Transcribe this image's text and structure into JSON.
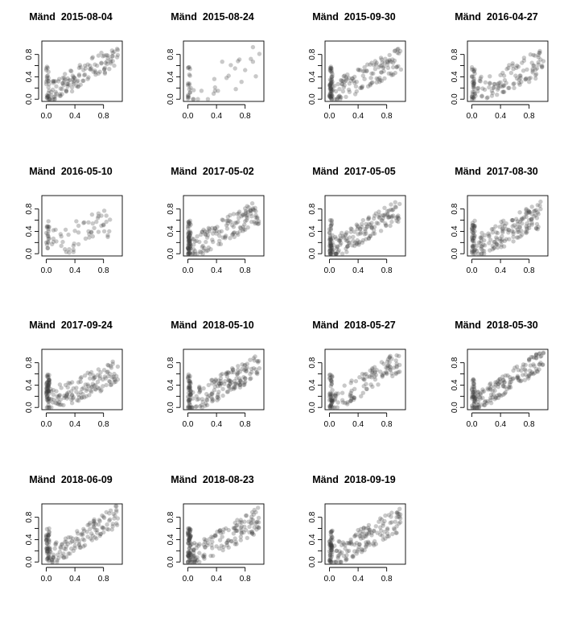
{
  "chart_data": [
    {
      "type": "scatter",
      "title": "Mänd  2015-08-04",
      "seed": 1,
      "n": 150,
      "xlim": [
        0,
        1
      ],
      "ylim": [
        0,
        1
      ],
      "xticks": [
        "0.0",
        "0.4",
        "0.8"
      ],
      "yticks": [
        "0.0",
        "0.4",
        "0.8"
      ],
      "slope": 0.75,
      "spread": 0.22,
      "cluster_zero": 0.2
    },
    {
      "type": "scatter",
      "title": "Mänd  2015-08-24",
      "seed": 2,
      "n": 45,
      "xlim": [
        0,
        1
      ],
      "ylim": [
        0,
        1
      ],
      "xticks": [
        "0.0",
        "0.4",
        "0.8"
      ],
      "yticks": [
        "0.0",
        "0.4",
        "0.8"
      ],
      "slope": 0.6,
      "spread": 0.3,
      "cluster_zero": 0.35
    },
    {
      "type": "scatter",
      "title": "Mänd  2015-09-30",
      "seed": 3,
      "n": 180,
      "xlim": [
        0,
        1
      ],
      "ylim": [
        0,
        1
      ],
      "xticks": [
        "0.0",
        "0.4",
        "0.8"
      ],
      "yticks": [
        "0.0",
        "0.4",
        "0.8"
      ],
      "slope": 0.65,
      "spread": 0.22,
      "cluster_zero": 0.25
    },
    {
      "type": "scatter",
      "title": "Mänd  2016-04-27",
      "seed": 4,
      "n": 140,
      "xlim": [
        0,
        1
      ],
      "ylim": [
        0,
        1
      ],
      "xticks": [
        "0.0",
        "0.4",
        "0.8"
      ],
      "yticks": [
        "0.0",
        "0.4",
        "0.8"
      ],
      "slope": 0.6,
      "spread": 0.25,
      "cluster_zero": 0.25
    },
    {
      "type": "scatter",
      "title": "Mänd  2016-05-10",
      "seed": 5,
      "n": 75,
      "xlim": [
        0,
        1
      ],
      "ylim": [
        0,
        1
      ],
      "xticks": [
        "0.0",
        "0.4",
        "0.8"
      ],
      "yticks": [
        "0.0",
        "0.4",
        "0.8"
      ],
      "slope": 0.55,
      "spread": 0.28,
      "cluster_zero": 0.3
    },
    {
      "type": "scatter",
      "title": "Mänd  2017-05-02",
      "seed": 6,
      "n": 200,
      "xlim": [
        0,
        1
      ],
      "ylim": [
        0,
        1
      ],
      "xticks": [
        "0.0",
        "0.4",
        "0.8"
      ],
      "yticks": [
        "0.0",
        "0.4",
        "0.8"
      ],
      "slope": 0.7,
      "spread": 0.22,
      "cluster_zero": 0.25
    },
    {
      "type": "scatter",
      "title": "Mänd  2017-05-05",
      "seed": 7,
      "n": 190,
      "xlim": [
        0,
        1
      ],
      "ylim": [
        0,
        1
      ],
      "xticks": [
        "0.0",
        "0.4",
        "0.8"
      ],
      "yticks": [
        "0.0",
        "0.4",
        "0.8"
      ],
      "slope": 0.75,
      "spread": 0.2,
      "cluster_zero": 0.2
    },
    {
      "type": "scatter",
      "title": "Mänd  2017-08-30",
      "seed": 8,
      "n": 190,
      "xlim": [
        0,
        1
      ],
      "ylim": [
        0,
        1
      ],
      "xticks": [
        "0.0",
        "0.4",
        "0.8"
      ],
      "yticks": [
        "0.0",
        "0.4",
        "0.8"
      ],
      "slope": 0.65,
      "spread": 0.24,
      "cluster_zero": 0.2
    },
    {
      "type": "scatter",
      "title": "Mänd  2017-09-24",
      "seed": 9,
      "n": 190,
      "xlim": [
        0,
        1
      ],
      "ylim": [
        0,
        1
      ],
      "xticks": [
        "0.0",
        "0.4",
        "0.8"
      ],
      "yticks": [
        "0.0",
        "0.4",
        "0.8"
      ],
      "slope": 0.55,
      "spread": 0.22,
      "cluster_zero": 0.25
    },
    {
      "type": "scatter",
      "title": "Mänd  2018-05-10",
      "seed": 10,
      "n": 200,
      "xlim": [
        0,
        1
      ],
      "ylim": [
        0,
        1
      ],
      "xticks": [
        "0.0",
        "0.4",
        "0.8"
      ],
      "yticks": [
        "0.0",
        "0.4",
        "0.8"
      ],
      "slope": 0.7,
      "spread": 0.22,
      "cluster_zero": 0.25
    },
    {
      "type": "scatter",
      "title": "Mänd  2018-05-27",
      "seed": 11,
      "n": 150,
      "xlim": [
        0,
        1
      ],
      "ylim": [
        0,
        1
      ],
      "xticks": [
        "0.0",
        "0.4",
        "0.8"
      ],
      "yticks": [
        "0.0",
        "0.4",
        "0.8"
      ],
      "slope": 0.8,
      "spread": 0.2,
      "cluster_zero": 0.25
    },
    {
      "type": "scatter",
      "title": "Mänd  2018-05-30",
      "seed": 12,
      "n": 190,
      "xlim": [
        0,
        1
      ],
      "ylim": [
        0,
        1
      ],
      "xticks": [
        "0.0",
        "0.4",
        "0.8"
      ],
      "yticks": [
        "0.0",
        "0.4",
        "0.8"
      ],
      "slope": 0.85,
      "spread": 0.18,
      "cluster_zero": 0.2
    },
    {
      "type": "scatter",
      "title": "Mänd  2018-06-09",
      "seed": 13,
      "n": 170,
      "xlim": [
        0,
        1
      ],
      "ylim": [
        0,
        1
      ],
      "xticks": [
        "0.0",
        "0.4",
        "0.8"
      ],
      "yticks": [
        "0.0",
        "0.4",
        "0.8"
      ],
      "slope": 0.8,
      "spread": 0.2,
      "cluster_zero": 0.2
    },
    {
      "type": "scatter",
      "title": "Mänd  2018-08-23",
      "seed": 14,
      "n": 200,
      "xlim": [
        0,
        1
      ],
      "ylim": [
        0,
        1
      ],
      "xticks": [
        "0.0",
        "0.4",
        "0.8"
      ],
      "yticks": [
        "0.0",
        "0.4",
        "0.8"
      ],
      "slope": 0.7,
      "spread": 0.22,
      "cluster_zero": 0.25
    },
    {
      "type": "scatter",
      "title": "Mänd  2018-09-19",
      "seed": 15,
      "n": 190,
      "xlim": [
        0,
        1
      ],
      "ylim": [
        0,
        1
      ],
      "xticks": [
        "0.0",
        "0.4",
        "0.8"
      ],
      "yticks": [
        "0.0",
        "0.4",
        "0.8"
      ],
      "slope": 0.72,
      "spread": 0.22,
      "cluster_zero": 0.2
    }
  ]
}
